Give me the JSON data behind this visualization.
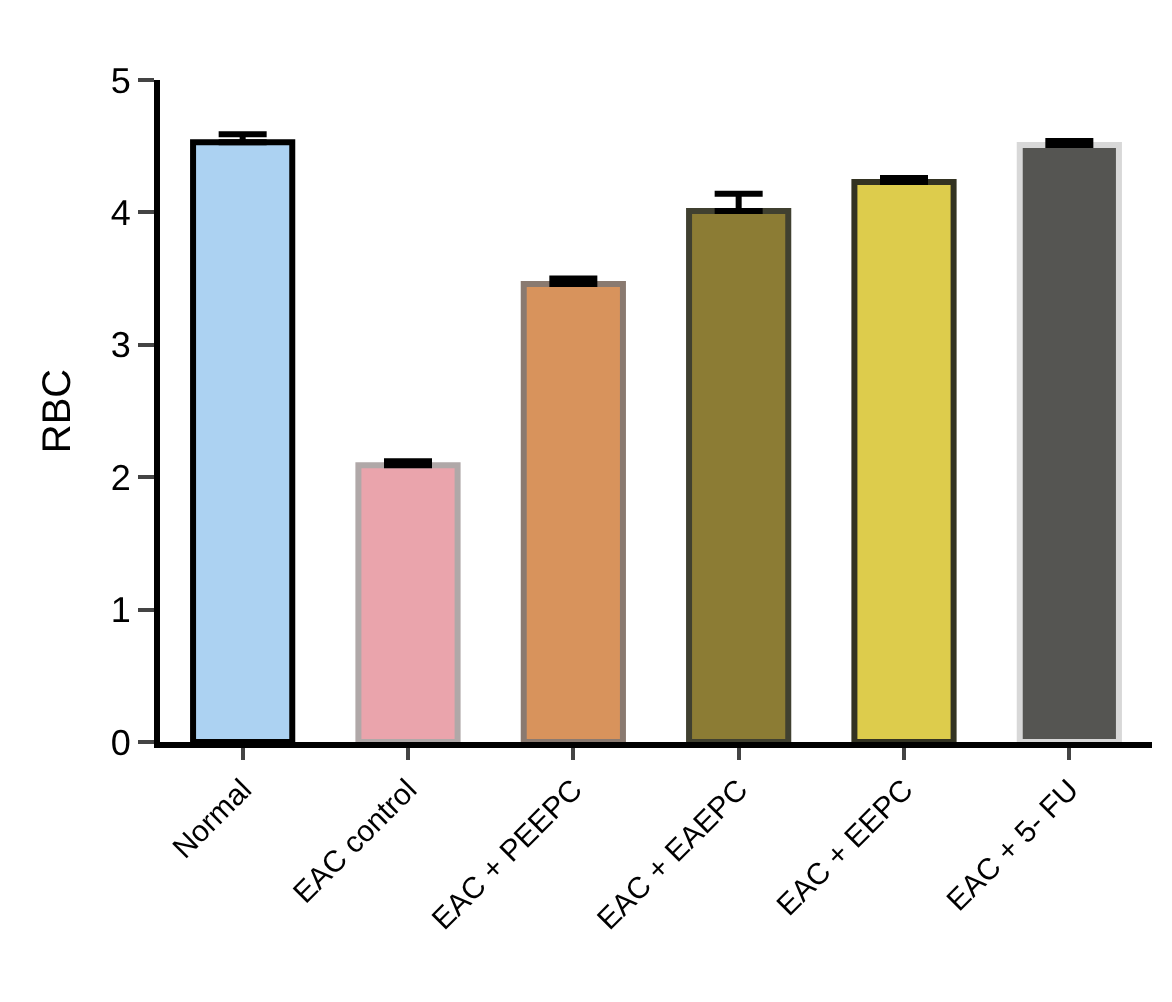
{
  "chart_data": {
    "type": "bar",
    "ylabel": "RBC",
    "categories": [
      "Normal",
      "EAC control",
      "EAC + PEEPC",
      "EAC + EAEPC",
      "EAC + EEPC",
      "EAC + 5- FU"
    ],
    "values": [
      4.53,
      2.09,
      3.46,
      4.01,
      4.23,
      4.51
    ],
    "errors": [
      [
        4.53,
        4.59
      ],
      [
        2.09,
        2.12
      ],
      [
        3.46,
        3.5
      ],
      [
        4.01,
        4.14
      ],
      [
        4.23,
        4.26
      ],
      [
        4.51,
        4.54
      ]
    ],
    "colors": [
      "#acd2f2",
      "#eaa4ac",
      "#d8935c",
      "#8c7c34",
      "#ddcc4c",
      "#555552"
    ],
    "ylim": [
      0,
      5
    ],
    "yticks": [
      0,
      1,
      2,
      3,
      4,
      5
    ]
  }
}
